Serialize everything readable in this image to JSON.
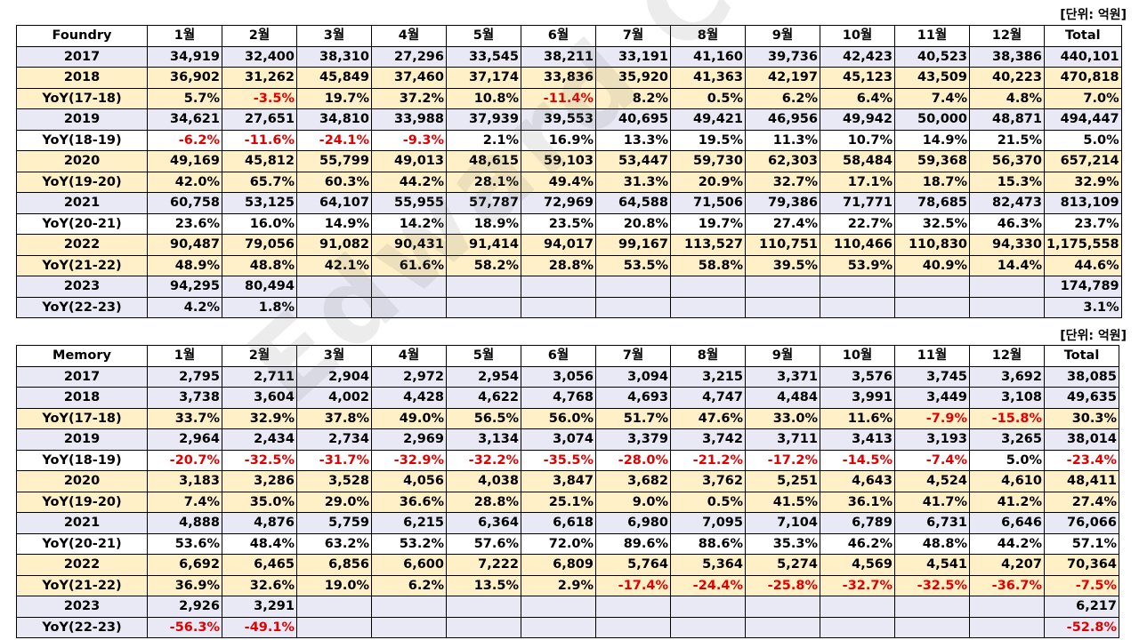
{
  "unit_label": "[단위: 억원]",
  "watermark": "Edward Choi",
  "columns": [
    "1월",
    "2월",
    "3월",
    "4월",
    "5월",
    "6월",
    "7월",
    "8월",
    "9월",
    "10월",
    "11월",
    "12월",
    "Total"
  ],
  "tables": [
    {
      "title": "Foundry",
      "rows": [
        {
          "label": "2017",
          "kind": "year",
          "values": [
            "34,919",
            "32,400",
            "38,310",
            "27,296",
            "33,545",
            "38,211",
            "33,191",
            "41,160",
            "39,736",
            "42,423",
            "40,523",
            "38,386",
            "440,101"
          ]
        },
        {
          "label": "2018",
          "kind": "hl",
          "values": [
            "36,902",
            "31,262",
            "45,849",
            "37,460",
            "37,174",
            "33,836",
            "35,920",
            "41,363",
            "42,197",
            "45,123",
            "43,509",
            "40,223",
            "470,818"
          ]
        },
        {
          "label": "YoY(17-18)",
          "kind": "hl",
          "values": [
            "5.7%",
            "-3.5%",
            "19.7%",
            "37.2%",
            "10.8%",
            "-11.4%",
            "8.2%",
            "0.5%",
            "6.2%",
            "6.4%",
            "7.4%",
            "4.8%",
            "7.0%"
          ]
        },
        {
          "label": "2019",
          "kind": "year",
          "values": [
            "34,621",
            "27,651",
            "34,810",
            "33,988",
            "37,939",
            "39,553",
            "40,695",
            "49,421",
            "46,956",
            "49,942",
            "50,000",
            "48,871",
            "494,447"
          ]
        },
        {
          "label": "YoY(18-19)",
          "kind": "yoy",
          "values": [
            "-6.2%",
            "-11.6%",
            "-24.1%",
            "-9.3%",
            "2.1%",
            "16.9%",
            "13.3%",
            "19.5%",
            "11.3%",
            "10.7%",
            "14.9%",
            "21.5%",
            "5.0%"
          ]
        },
        {
          "label": "2020",
          "kind": "hl",
          "values": [
            "49,169",
            "45,812",
            "55,799",
            "49,013",
            "48,615",
            "59,103",
            "53,447",
            "59,730",
            "62,303",
            "58,484",
            "59,368",
            "56,370",
            "657,214"
          ]
        },
        {
          "label": "YoY(19-20)",
          "kind": "hl",
          "values": [
            "42.0%",
            "65.7%",
            "60.3%",
            "44.2%",
            "28.1%",
            "49.4%",
            "31.3%",
            "20.9%",
            "32.7%",
            "17.1%",
            "18.7%",
            "15.3%",
            "32.9%"
          ]
        },
        {
          "label": "2021",
          "kind": "year",
          "values": [
            "60,758",
            "53,125",
            "64,107",
            "55,955",
            "57,787",
            "72,969",
            "64,588",
            "71,506",
            "79,386",
            "71,771",
            "78,685",
            "82,473",
            "813,109"
          ]
        },
        {
          "label": "YoY(20-21)",
          "kind": "yoy",
          "values": [
            "23.6%",
            "16.0%",
            "14.9%",
            "14.2%",
            "18.9%",
            "23.5%",
            "20.8%",
            "19.7%",
            "27.4%",
            "22.7%",
            "32.5%",
            "46.3%",
            "23.7%"
          ]
        },
        {
          "label": "2022",
          "kind": "hl",
          "values": [
            "90,487",
            "79,056",
            "91,082",
            "90,431",
            "91,414",
            "94,017",
            "99,167",
            "113,527",
            "110,751",
            "110,466",
            "110,830",
            "94,330",
            "1,175,558"
          ]
        },
        {
          "label": "YoY(21-22)",
          "kind": "hl",
          "values": [
            "48.9%",
            "48.8%",
            "42.1%",
            "61.6%",
            "58.2%",
            "28.8%",
            "53.5%",
            "58.8%",
            "39.5%",
            "53.9%",
            "40.9%",
            "14.4%",
            "44.6%"
          ]
        },
        {
          "label": "2023",
          "kind": "year",
          "values": [
            "94,295",
            "80,494",
            "",
            "",
            "",
            "",
            "",
            "",
            "",
            "",
            "",
            "",
            "174,789"
          ]
        },
        {
          "label": "YoY(22-23)",
          "kind": "year",
          "values": [
            "4.2%",
            "1.8%",
            "",
            "",
            "",
            "",
            "",
            "",
            "",
            "",
            "",
            "",
            "3.1%"
          ]
        }
      ]
    },
    {
      "title": "Memory",
      "rows": [
        {
          "label": "2017",
          "kind": "year",
          "values": [
            "2,795",
            "2,711",
            "2,904",
            "2,972",
            "2,954",
            "3,056",
            "3,094",
            "3,215",
            "3,371",
            "3,576",
            "3,745",
            "3,692",
            "38,085"
          ]
        },
        {
          "label": "2018",
          "kind": "year",
          "values": [
            "3,738",
            "3,604",
            "4,002",
            "4,428",
            "4,622",
            "4,768",
            "4,693",
            "4,747",
            "4,484",
            "3,991",
            "3,449",
            "3,108",
            "49,635"
          ]
        },
        {
          "label": "YoY(17-18)",
          "kind": "hl",
          "values": [
            "33.7%",
            "32.9%",
            "37.8%",
            "49.0%",
            "56.5%",
            "56.0%",
            "51.7%",
            "47.6%",
            "33.0%",
            "11.6%",
            "-7.9%",
            "-15.8%",
            "30.3%"
          ]
        },
        {
          "label": "2019",
          "kind": "year",
          "values": [
            "2,964",
            "2,434",
            "2,734",
            "2,969",
            "3,134",
            "3,074",
            "3,379",
            "3,742",
            "3,711",
            "3,413",
            "3,193",
            "3,265",
            "38,014"
          ]
        },
        {
          "label": "YoY(18-19)",
          "kind": "yoy",
          "values": [
            "-20.7%",
            "-32.5%",
            "-31.7%",
            "-32.9%",
            "-32.2%",
            "-35.5%",
            "-28.0%",
            "-21.2%",
            "-17.2%",
            "-14.5%",
            "-7.4%",
            "5.0%",
            "-23.4%"
          ]
        },
        {
          "label": "2020",
          "kind": "hl",
          "values": [
            "3,183",
            "3,286",
            "3,528",
            "4,056",
            "4,038",
            "3,847",
            "3,682",
            "3,762",
            "5,251",
            "4,643",
            "4,524",
            "4,610",
            "48,411"
          ]
        },
        {
          "label": "YoY(19-20)",
          "kind": "hl",
          "values": [
            "7.4%",
            "35.0%",
            "29.0%",
            "36.6%",
            "28.8%",
            "25.1%",
            "9.0%",
            "0.5%",
            "41.5%",
            "36.1%",
            "41.7%",
            "41.2%",
            "27.4%"
          ]
        },
        {
          "label": "2021",
          "kind": "year",
          "values": [
            "4,888",
            "4,876",
            "5,759",
            "6,215",
            "6,364",
            "6,618",
            "6,980",
            "7,095",
            "7,104",
            "6,789",
            "6,731",
            "6,646",
            "76,066"
          ]
        },
        {
          "label": "YoY(20-21)",
          "kind": "yoy",
          "values": [
            "53.6%",
            "48.4%",
            "63.2%",
            "53.2%",
            "57.6%",
            "72.0%",
            "89.6%",
            "88.6%",
            "35.3%",
            "46.2%",
            "48.8%",
            "44.2%",
            "57.1%"
          ]
        },
        {
          "label": "2022",
          "kind": "hl",
          "values": [
            "6,692",
            "6,465",
            "6,856",
            "6,600",
            "7,222",
            "6,809",
            "5,764",
            "5,364",
            "5,274",
            "4,569",
            "4,541",
            "4,207",
            "70,364"
          ]
        },
        {
          "label": "YoY(21-22)",
          "kind": "hl",
          "values": [
            "36.9%",
            "32.6%",
            "19.0%",
            "6.2%",
            "13.5%",
            "2.9%",
            "-17.4%",
            "-24.4%",
            "-25.8%",
            "-32.7%",
            "-32.5%",
            "-36.7%",
            "-7.5%"
          ]
        },
        {
          "label": "2023",
          "kind": "year",
          "values": [
            "2,926",
            "3,291",
            "",
            "",
            "",
            "",
            "",
            "",
            "",
            "",
            "",
            "",
            "6,217"
          ]
        },
        {
          "label": "YoY(22-23)",
          "kind": "year",
          "values": [
            "-56.3%",
            "-49.1%",
            "",
            "",
            "",
            "",
            "",
            "",
            "",
            "",
            "",
            "",
            "-52.8%"
          ]
        }
      ]
    }
  ]
}
